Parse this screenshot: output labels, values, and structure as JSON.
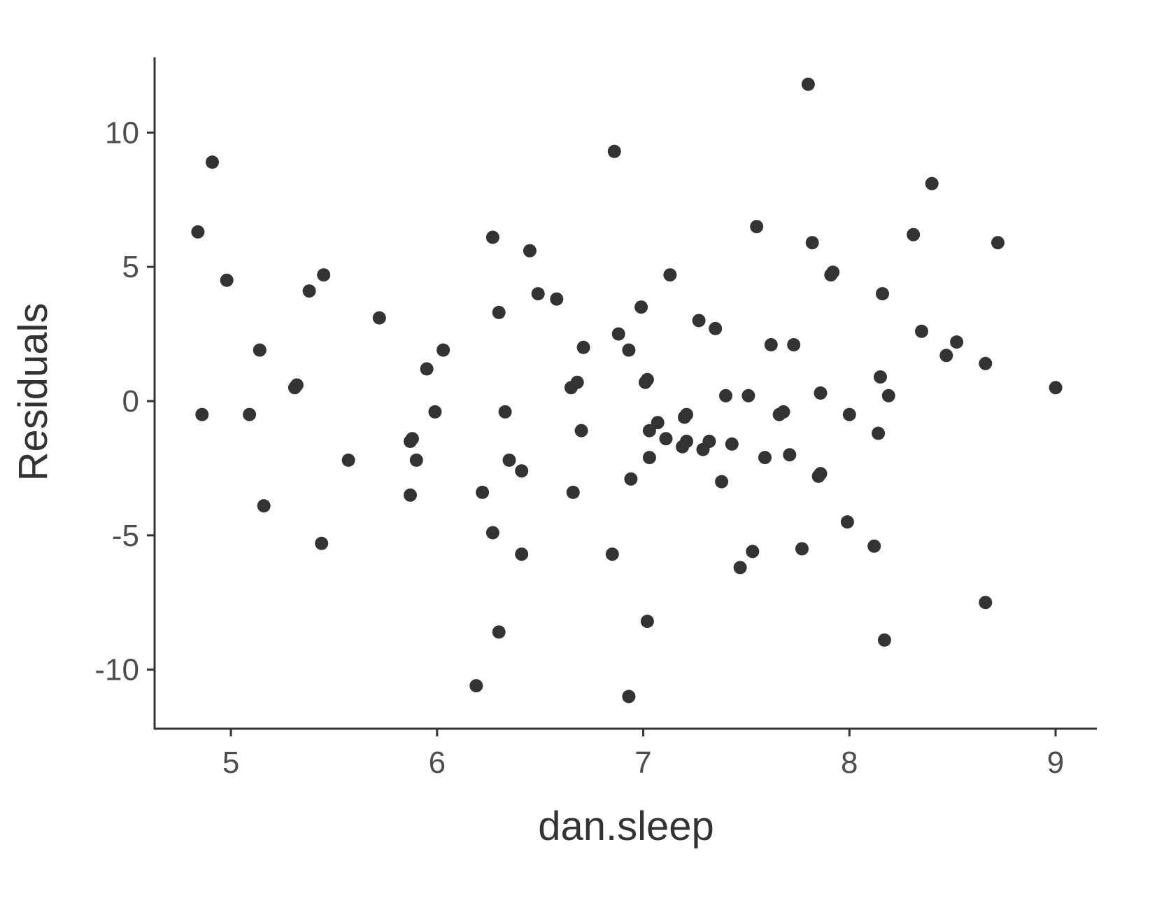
{
  "chart_data": {
    "type": "scatter",
    "title": "",
    "xlabel": "dan.sleep",
    "ylabel": "Residuals",
    "xlim": [
      4.63,
      9.2
    ],
    "ylim": [
      -12.2,
      12.8
    ],
    "xticks": [
      5,
      6,
      7,
      8,
      9
    ],
    "xtick_labels": [
      "5",
      "6",
      "7",
      "8",
      "9"
    ],
    "yticks": [
      10,
      5,
      0,
      -5,
      -10
    ],
    "ytick_labels": [
      "10",
      "5",
      "0",
      "-5",
      "-10"
    ],
    "grid": false,
    "legend": "none",
    "point_color": "#333333",
    "points": [
      [
        4.84,
        6.3
      ],
      [
        4.86,
        -0.5
      ],
      [
        4.91,
        8.9
      ],
      [
        4.98,
        4.5
      ],
      [
        5.09,
        -0.5
      ],
      [
        5.14,
        1.9
      ],
      [
        5.16,
        -3.9
      ],
      [
        5.31,
        0.5
      ],
      [
        5.32,
        0.6
      ],
      [
        5.38,
        4.1
      ],
      [
        5.44,
        -5.3
      ],
      [
        5.45,
        4.7
      ],
      [
        5.57,
        -2.2
      ],
      [
        5.72,
        3.1
      ],
      [
        5.87,
        -1.5
      ],
      [
        5.87,
        -3.5
      ],
      [
        5.88,
        -1.4
      ],
      [
        5.9,
        -2.2
      ],
      [
        5.95,
        1.2
      ],
      [
        5.99,
        -0.4
      ],
      [
        6.03,
        1.9
      ],
      [
        6.19,
        -10.6
      ],
      [
        6.22,
        -3.4
      ],
      [
        6.27,
        -4.9
      ],
      [
        6.27,
        6.1
      ],
      [
        6.3,
        3.3
      ],
      [
        6.3,
        -8.6
      ],
      [
        6.33,
        -0.4
      ],
      [
        6.35,
        -2.2
      ],
      [
        6.41,
        -2.6
      ],
      [
        6.41,
        -5.7
      ],
      [
        6.45,
        5.6
      ],
      [
        6.49,
        4.0
      ],
      [
        6.58,
        3.8
      ],
      [
        6.65,
        0.5
      ],
      [
        6.66,
        -3.4
      ],
      [
        6.68,
        0.7
      ],
      [
        6.7,
        -1.1
      ],
      [
        6.71,
        2.0
      ],
      [
        6.85,
        -5.7
      ],
      [
        6.86,
        9.3
      ],
      [
        6.88,
        2.5
      ],
      [
        6.93,
        1.9
      ],
      [
        6.93,
        -11.0
      ],
      [
        6.94,
        -2.9
      ],
      [
        6.99,
        3.5
      ],
      [
        7.01,
        0.7
      ],
      [
        7.02,
        0.8
      ],
      [
        7.02,
        -8.2
      ],
      [
        7.03,
        -1.1
      ],
      [
        7.03,
        -2.1
      ],
      [
        7.07,
        -0.8
      ],
      [
        7.11,
        -1.4
      ],
      [
        7.13,
        4.7
      ],
      [
        7.19,
        -1.7
      ],
      [
        7.2,
        -0.6
      ],
      [
        7.21,
        -0.5
      ],
      [
        7.21,
        -1.5
      ],
      [
        7.27,
        3.0
      ],
      [
        7.29,
        -1.8
      ],
      [
        7.32,
        -1.5
      ],
      [
        7.35,
        2.7
      ],
      [
        7.38,
        -3.0
      ],
      [
        7.4,
        0.2
      ],
      [
        7.43,
        -1.6
      ],
      [
        7.47,
        -6.2
      ],
      [
        7.51,
        0.2
      ],
      [
        7.53,
        -5.6
      ],
      [
        7.55,
        6.5
      ],
      [
        7.59,
        -2.1
      ],
      [
        7.62,
        2.1
      ],
      [
        7.66,
        -0.5
      ],
      [
        7.68,
        -0.4
      ],
      [
        7.71,
        -2.0
      ],
      [
        7.73,
        2.1
      ],
      [
        7.77,
        -5.5
      ],
      [
        7.8,
        11.8
      ],
      [
        7.82,
        5.9
      ],
      [
        7.85,
        -2.8
      ],
      [
        7.86,
        0.3
      ],
      [
        7.86,
        -2.7
      ],
      [
        7.91,
        4.7
      ],
      [
        7.92,
        4.8
      ],
      [
        7.99,
        -4.5
      ],
      [
        8.0,
        -0.5
      ],
      [
        8.12,
        -5.4
      ],
      [
        8.14,
        -1.2
      ],
      [
        8.15,
        0.9
      ],
      [
        8.16,
        4.0
      ],
      [
        8.17,
        -8.9
      ],
      [
        8.19,
        0.2
      ],
      [
        8.31,
        6.2
      ],
      [
        8.35,
        2.6
      ],
      [
        8.4,
        8.1
      ],
      [
        8.47,
        1.7
      ],
      [
        8.52,
        2.2
      ],
      [
        8.66,
        1.4
      ],
      [
        8.66,
        -7.5
      ],
      [
        8.72,
        5.9
      ],
      [
        9.0,
        0.5
      ]
    ]
  }
}
